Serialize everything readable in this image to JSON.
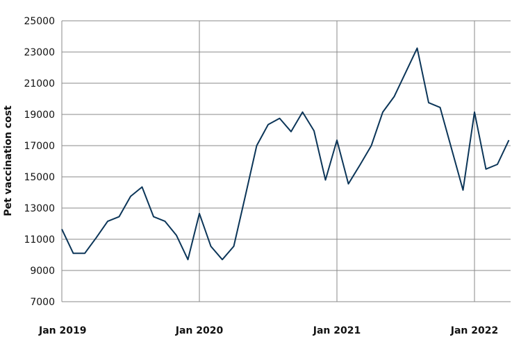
{
  "chart_data": {
    "type": "line",
    "title": "",
    "xlabel": "",
    "ylabel": "Pet vaccination cost",
    "ylim": [
      7000,
      25000
    ],
    "yticks": [
      7000,
      9000,
      11000,
      13000,
      15000,
      17000,
      19000,
      21000,
      23000,
      25000
    ],
    "xticks": [
      "Jan 2019",
      "Jan 2020",
      "Jan 2021",
      "Jan 2022"
    ],
    "grid": true,
    "line_color": "#0b3558",
    "series": [
      {
        "x": [
          "2019-01",
          "2019-02",
          "2019-03",
          "2019-04",
          "2019-05",
          "2019-06",
          "2019-07",
          "2019-08",
          "2019-09",
          "2019-10",
          "2019-11",
          "2019-12",
          "2020-01",
          "2020-02",
          "2020-03",
          "2020-04",
          "2020-05",
          "2020-06",
          "2020-07",
          "2020-08",
          "2020-09",
          "2020-10",
          "2020-11",
          "2020-12",
          "2021-01",
          "2021-02",
          "2021-03",
          "2021-04",
          "2021-05",
          "2021-06",
          "2021-07",
          "2021-08",
          "2021-09",
          "2021-10",
          "2021-11",
          "2021-12",
          "2022-01",
          "2022-02",
          "2022-03",
          "2022-04"
        ],
        "values": [
          11650,
          10100,
          10100,
          11100,
          12150,
          12450,
          13750,
          14350,
          12450,
          12150,
          11250,
          9700,
          12650,
          10550,
          9700,
          10550,
          13750,
          17000,
          18350,
          18750,
          17900,
          19150,
          17950,
          14800,
          17350,
          14550,
          15750,
          17000,
          19150,
          20150,
          21700,
          23250,
          19750,
          19450,
          16800,
          14150,
          19150,
          15500,
          15800,
          17350
        ]
      }
    ]
  }
}
